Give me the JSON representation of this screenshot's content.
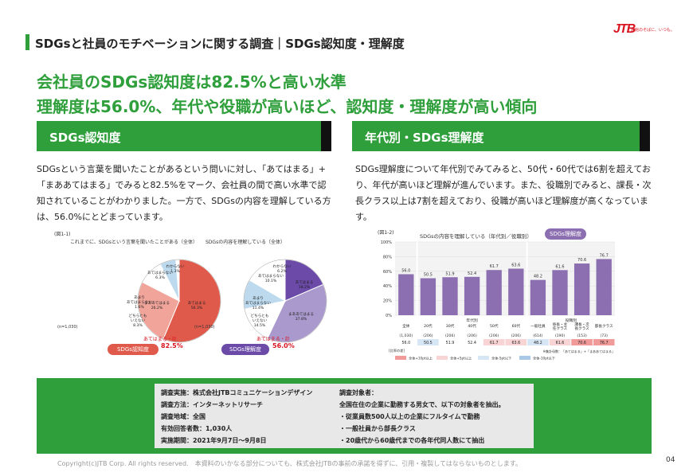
{
  "header": {
    "title": "SDGsと社員のモチベーションに関する調査｜SDGs認知度・理解度"
  },
  "logo": {
    "brand": "JTB",
    "tagline": "旅館のそばに、いつも。"
  },
  "headline": {
    "line1": "会社員のSDGs認知度は82.5%と高い水準",
    "line2": "理解度は56.0%、年代や役職が高いほど、認知度・理解度が高い傾向"
  },
  "left": {
    "section_title": "SDGs認知度",
    "paragraph": "SDGsという言葉を聞いたことがあるという問いに対し、「あてはまる」+「まああてはまる」でみると82.5%をマーク、会社員の間で高い水準で認知されていることがわかりました。一方で、SDGsの内容を理解している方は、56.0%にとどまっています。",
    "fig_label": "(図1-1)",
    "pie1": {
      "title": "これまでに、SDGsという言葉を聞いたことがある（全体）",
      "badge": "SDGs認知度",
      "total_label": "あてはまる・計",
      "total_value": "82.5%",
      "n_label": "(n=1,030)",
      "slices": [
        {
          "label": "あてはまる",
          "value": 56.3,
          "color": "#e05a4b"
        },
        {
          "label": "まああてはまる",
          "value": 26.2,
          "color": "#f0a49a"
        },
        {
          "label": "どちらともいえない",
          "value": 8.3,
          "color": "#ffffff"
        },
        {
          "label": "あまりあてはまらない",
          "value": 1.6,
          "color": "#ffffff"
        },
        {
          "label": "あてはまらない",
          "value": 6.3,
          "color": "#bcd9ee"
        },
        {
          "label": "わからない",
          "value": 1.3,
          "color": "#ffffff"
        }
      ],
      "text_labels": [
        "あてはまる\n56.3%",
        "まああてはまる\n26.2%",
        "どちらとも\nいえない\n8.3%",
        "あまり\nあてはまらない\n1.6%",
        "あてはまらない\n6.3%",
        "わからない\n1.3%"
      ]
    },
    "pie2": {
      "title": "SDGsの内容を理解している（全体）",
      "badge": "SDGs理解度",
      "total_label": "あてはまる・計",
      "total_value": "56.0%",
      "n_label": "(n=1,030)",
      "slices": [
        {
          "label": "あてはまる",
          "value": 18.2,
          "color": "#6b4aa8"
        },
        {
          "label": "まああてはまる",
          "value": 37.8,
          "color": "#a999cd"
        },
        {
          "label": "どちらともいえない",
          "value": 14.5,
          "color": "#ffffff"
        },
        {
          "label": "あまりあてはまらない",
          "value": 11.4,
          "color": "#bcd9ee"
        },
        {
          "label": "あてはまらない",
          "value": 10.1,
          "color": "#ffffff"
        },
        {
          "label": "わからない",
          "value": 6.2,
          "color": "#ffffff"
        }
      ],
      "text_labels": [
        "あてはまる\n18.2%",
        "まああてはまる\n37.8%",
        "どちらとも\nいえない\n14.5%",
        "あまり\nあてはまらない\n11.4%",
        "あてはまらない\n10.1%",
        "わからない\n6.2%"
      ]
    }
  },
  "right": {
    "section_title": "年代別・SDGs理解度",
    "paragraph": "SDGs理解度について年代別でみてみると、50代・60代では6割を超えており、年代が高いほど理解が進んでいます。また、役職別でみると、課長・次長クラス以上は7割を超えており、役職が高いほど理解度が高くなっています。",
    "fig_label": "(図1-2)"
  },
  "chart_data": {
    "type": "bar",
    "title": "SDGsの内容を理解している（年代別／役職別）",
    "badge": "SDGs理解度",
    "ylim": [
      0,
      100
    ],
    "yticks": [
      "100%",
      "80%",
      "60%",
      "40%",
      "20%",
      "0%"
    ],
    "categories": [
      "全体",
      "20代",
      "30代",
      "40代",
      "50代",
      "60代",
      "一般社員",
      "係長・主任クラス",
      "課長・次長クラス",
      "部長クラス"
    ],
    "n": [
      "(1,030)",
      "(206)",
      "(206)",
      "(206)",
      "(206)",
      "(206)",
      "(614)",
      "(190)",
      "(153)",
      "(73)"
    ],
    "values": [
      56.0,
      50.5,
      51.9,
      52.4,
      61.7,
      63.6,
      48.2,
      61.6,
      70.6,
      76.7
    ],
    "groups": [
      "年代別",
      "役職別"
    ],
    "table_values": [
      "56.0",
      "50.5",
      "51.9",
      "52.4",
      "61.7",
      "63.6",
      "48.2",
      "61.6",
      "70.6",
      "76.7"
    ],
    "bar_color": "#8c6fb0",
    "legend_label": "[比率の差]",
    "legend": [
      "全体+10pt以上",
      "全体+5pt以上",
      "全体-5pt以下",
      "全体-10pt以下"
    ],
    "legend_colors": [
      "#f19a9a",
      "#f9d4d4",
      "#d6e6f5",
      "#a9c8e8"
    ],
    "note": "※集計母数：「あてはまる」+「まああてはまる」"
  },
  "survey": {
    "left": [
      "調査実施：株式会社JTBコミュニケーションデザイン",
      "調査方法：インターネットリサーチ",
      "調査地域：全国",
      "有効回答者数：1,030人",
      "実施期間：2021年9月7日～9月8日"
    ],
    "right": [
      "調査対象者：",
      "全国在住の企業に勤務する男女で、以下の対象者を抽出。",
      "・従業員数500人以上の企業にフルタイムで勤務",
      "・一般社員から部長クラス",
      "・20歳代から60歳代までの各年代同人数にて抽出"
    ]
  },
  "footer": {
    "copyright": "Copyright(c)JTB Corp. All rights reserved.　本資料のいかなる部分についても、株式会社JTBの事前の承諾を得ずに、引用・複製してはならないものとします。",
    "page": "04"
  }
}
